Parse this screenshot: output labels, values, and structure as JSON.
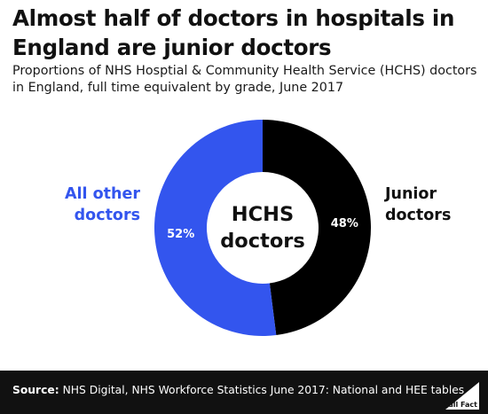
{
  "title": "Almost half of doctors in hospitals in England are junior doctors",
  "subtitle": "Proportions of NHS Hosptial & Community Health Service (HCHS) doctors in England, full time equivalent by grade, June 2017",
  "chart_data": {
    "type": "pie",
    "center_label": "HCHS doctors",
    "slices": [
      {
        "label": "Junior doctors",
        "value": 48,
        "value_label": "48%",
        "color": "#000000"
      },
      {
        "label": "All other doctors",
        "value": 52,
        "value_label": "52%",
        "color": "#3355ee"
      }
    ]
  },
  "footer": {
    "source_label": "Source:",
    "source_text": "NHS Digital, NHS Workforce Statistics June 2017: National and HEE tables",
    "logo_text": "Full Fact"
  }
}
